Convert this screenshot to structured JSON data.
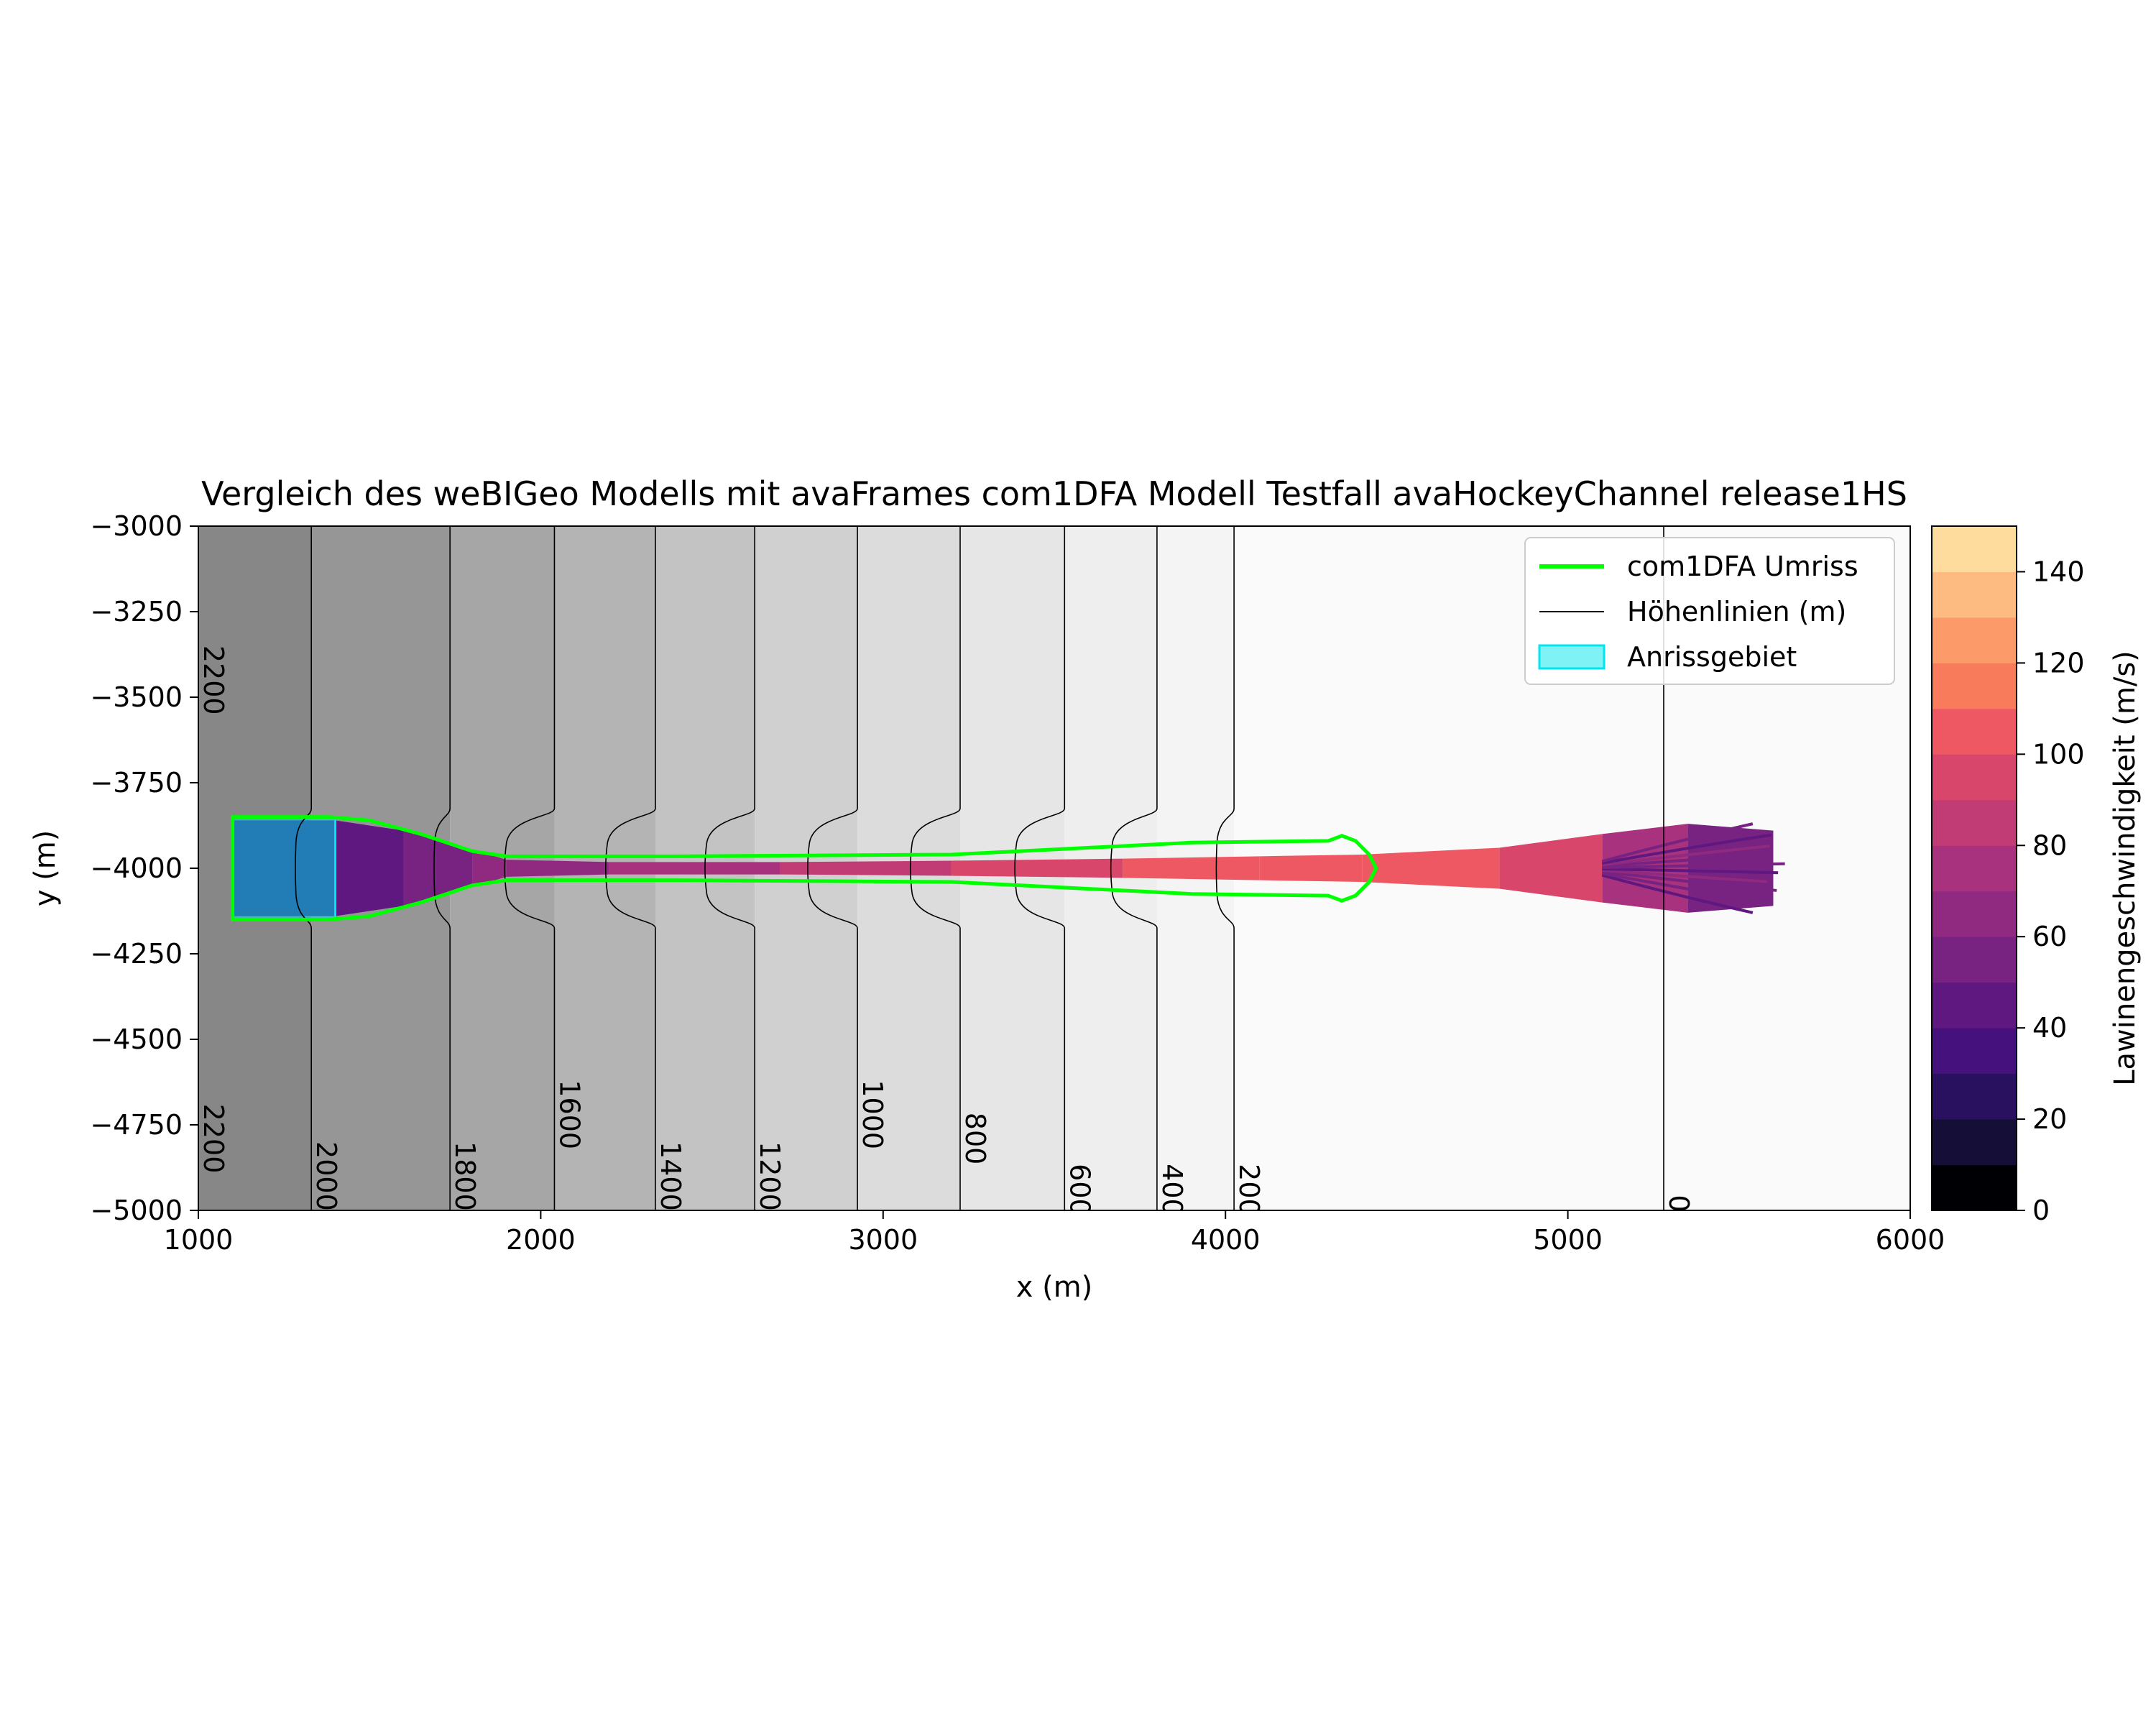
{
  "chart_data": {
    "type": "contour",
    "title": "Vergleich des weBIGeo Modells mit avaFrames com1DFA Modell Testfall avaHockeyChannel release1HS",
    "xlabel": "x (m)",
    "ylabel": "y (m)",
    "xlim": [
      1000,
      6000
    ],
    "ylim": [
      -5000,
      -3000
    ],
    "xticks": [
      1000,
      2000,
      3000,
      4000,
      5000,
      6000
    ],
    "yticks": [
      -3000,
      -3250,
      -3500,
      -3750,
      -4000,
      -4250,
      -4500,
      -4750,
      -5000
    ],
    "xtick_labels": [
      "1000",
      "2000",
      "3000",
      "4000",
      "5000",
      "6000"
    ],
    "ytick_labels": [
      "−3000",
      "−3250",
      "−3500",
      "−3750",
      "−4000",
      "−4250",
      "−4500",
      "−4750",
      "−5000"
    ],
    "elevation_bands": [
      {
        "x0": 1000,
        "x1": 1330,
        "color": "#878787"
      },
      {
        "x0": 1330,
        "x1": 1735,
        "color": "#969696"
      },
      {
        "x0": 1735,
        "x1": 2040,
        "color": "#a6a6a6"
      },
      {
        "x0": 2040,
        "x1": 2335,
        "color": "#b4b4b4"
      },
      {
        "x0": 2335,
        "x1": 2625,
        "color": "#c3c3c3"
      },
      {
        "x0": 2625,
        "x1": 2925,
        "color": "#d0d0d0"
      },
      {
        "x0": 2925,
        "x1": 3225,
        "color": "#dcdcdc"
      },
      {
        "x0": 3225,
        "x1": 3530,
        "color": "#e6e6e6"
      },
      {
        "x0": 3530,
        "x1": 3800,
        "color": "#eeeeee"
      },
      {
        "x0": 3800,
        "x1": 4025,
        "color": "#f4f4f4"
      },
      {
        "x0": 4025,
        "x1": 6000,
        "color": "#fafafa"
      }
    ],
    "contours": [
      {
        "level": "2200",
        "x": 1000,
        "bump": 0
      },
      {
        "level": "2000",
        "x": 1330,
        "bump": 45
      },
      {
        "level": "1800",
        "x": 1735,
        "bump": 45
      },
      {
        "level": "1600",
        "x": 2040,
        "bump": 140
      },
      {
        "level": "1400",
        "x": 2335,
        "bump": 140
      },
      {
        "level": "1200",
        "x": 2625,
        "bump": 140
      },
      {
        "level": "1000",
        "x": 2925,
        "bump": 140
      },
      {
        "level": "800",
        "x": 3225,
        "bump": 140
      },
      {
        "level": "600",
        "x": 3530,
        "bump": 140
      },
      {
        "level": "400",
        "x": 3800,
        "bump": 130
      },
      {
        "level": "200",
        "x": 4025,
        "bump": 50
      },
      {
        "level": "0",
        "x": 5280,
        "bump": 0
      }
    ],
    "contour_label_y": [
      {
        "level": "2200",
        "y": -3450
      },
      {
        "level": "2200",
        "y": -4790
      },
      {
        "level": "2000",
        "y": -4900
      },
      {
        "level": "1800",
        "y": -4900
      },
      {
        "level": "1600",
        "y": -4720
      },
      {
        "level": "1400",
        "y": -4900
      },
      {
        "level": "1200",
        "y": -4900
      },
      {
        "level": "1000",
        "y": -4720
      },
      {
        "level": "800",
        "y": -4790
      },
      {
        "level": "600",
        "y": -4940
      },
      {
        "level": "400",
        "y": -4940
      },
      {
        "level": "200",
        "y": -4940
      },
      {
        "level": "0",
        "y": -4980
      }
    ],
    "velocity_profile": [
      {
        "x": 1100,
        "half_width": 140,
        "v": 25
      },
      {
        "x": 1400,
        "half_width": 140,
        "v": 35
      },
      {
        "x": 1600,
        "half_width": 110,
        "v": 50
      },
      {
        "x": 1800,
        "half_width": 55,
        "v": 58
      },
      {
        "x": 1900,
        "half_width": 25,
        "v": 65
      },
      {
        "x": 2200,
        "half_width": 18,
        "v": 68
      },
      {
        "x": 2700,
        "half_width": 18,
        "v": 75
      },
      {
        "x": 3200,
        "half_width": 22,
        "v": 85
      },
      {
        "x": 3700,
        "half_width": 28,
        "v": 95
      },
      {
        "x": 4100,
        "half_width": 35,
        "v": 105
      },
      {
        "x": 4400,
        "half_width": 40,
        "v": 112
      },
      {
        "x": 4800,
        "half_width": 60,
        "v": 100
      },
      {
        "x": 5100,
        "half_width": 100,
        "v": 80
      },
      {
        "x": 5350,
        "half_width": 130,
        "v": 60
      },
      {
        "x": 5600,
        "half_width": 110,
        "v": 45
      }
    ],
    "com1dfa_outline": [
      [
        1100,
        -3850
      ],
      [
        1380,
        -3850
      ],
      [
        1500,
        -3860
      ],
      [
        1650,
        -3900
      ],
      [
        1800,
        -3950
      ],
      [
        1900,
        -3965
      ],
      [
        2400,
        -3965
      ],
      [
        3200,
        -3960
      ],
      [
        3900,
        -3925
      ],
      [
        4300,
        -3920
      ],
      [
        4340,
        -3905
      ],
      [
        4380,
        -3920
      ],
      [
        4420,
        -3960
      ],
      [
        4440,
        -4000
      ],
      [
        4420,
        -4040
      ],
      [
        4380,
        -4080
      ],
      [
        4340,
        -4095
      ],
      [
        4300,
        -4080
      ],
      [
        3900,
        -4075
      ],
      [
        3200,
        -4040
      ],
      [
        2400,
        -4035
      ],
      [
        1900,
        -4035
      ],
      [
        1800,
        -4050
      ],
      [
        1650,
        -4100
      ],
      [
        1500,
        -4140
      ],
      [
        1380,
        -4150
      ],
      [
        1100,
        -4150
      ]
    ],
    "release_area": {
      "x": [
        1100,
        1400
      ],
      "y": [
        -4150,
        -3850
      ],
      "color": "#00e5ee"
    },
    "colorbar": {
      "label": "Lawinengeschwindigkeit (m/s)",
      "range": [
        0,
        150
      ],
      "ticks": [
        "0",
        "20",
        "40",
        "60",
        "80",
        "100",
        "120",
        "140"
      ],
      "tick_values": [
        0,
        20,
        40,
        60,
        80,
        100,
        120,
        140
      ],
      "colors": [
        "#000004",
        "#150e37",
        "#2a115f",
        "#45127d",
        "#5f187f",
        "#782281",
        "#8f2a80",
        "#a8327d",
        "#c13b75",
        "#d9466b",
        "#ee5862",
        "#f87b5b",
        "#fd9a6a",
        "#febb81",
        "#fddc9e"
      ]
    },
    "legend": {
      "position": "top-right",
      "entries": [
        {
          "label": "com1DFA Umriss",
          "kind": "line",
          "color": "#00ff00"
        },
        {
          "label": "Höhenlinien (m)",
          "kind": "line",
          "color": "#000000"
        },
        {
          "label": "Anrissgebiet",
          "kind": "patch",
          "color": "#00e5ee"
        }
      ]
    }
  }
}
